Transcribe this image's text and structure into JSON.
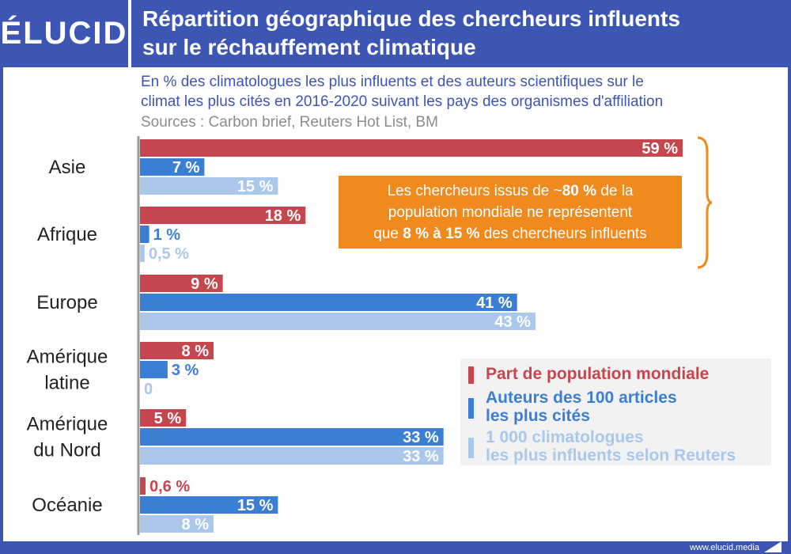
{
  "header": {
    "logo": "ÉLUCID",
    "title_line1": "Répartition géographique des chercheurs influents",
    "title_line2": "sur le réchauffement climatique"
  },
  "subtitle_line1": "En % des climatologues les plus influents et des auteurs scientifiques sur le",
  "subtitle_line2": "climat les plus cités en 2016-2020 suivant les pays des organismes d'affiliation",
  "sources": "Sources : Carbon brief, Reuters Hot List, BM",
  "callout": {
    "line1_a": "Les chercheurs issus de ~",
    "line1_b": "80 %",
    "line1_c": " de la",
    "line2": "population mondiale ne représentent",
    "line3_a": "que ",
    "line3_b": "8 % à 15 %",
    "line3_c": " des chercheurs influents"
  },
  "legend": [
    {
      "line1": "Part de population mondiale",
      "line2": ""
    },
    {
      "line1": "Auteurs des 100 articles",
      "line2": "les plus cités"
    },
    {
      "line1": "1 000 climatologues",
      "line2": "les plus influents selon Reuters"
    }
  ],
  "footer": {
    "url": "www.elucid.media"
  },
  "colors": {
    "header": "#3d55b3",
    "population": "#c4474e",
    "authors": "#3b7fd4",
    "reuters": "#a9c8ec",
    "callout": "#f18a1c"
  },
  "chart_data": {
    "type": "bar",
    "orientation": "horizontal",
    "categories": [
      [
        "Asie"
      ],
      [
        "Afrique"
      ],
      [
        "Europe"
      ],
      [
        "Amérique",
        "latine"
      ],
      [
        "Amérique",
        "du Nord"
      ],
      [
        "Océanie"
      ]
    ],
    "series": [
      {
        "name": "Part de population mondiale",
        "values": [
          59,
          18,
          9,
          8,
          5,
          0.6
        ],
        "labels": [
          "59 %",
          "18 %",
          "9 %",
          "8 %",
          "5 %",
          "0,6 %"
        ]
      },
      {
        "name": "Auteurs des 100 articles les plus cités",
        "values": [
          7,
          1,
          41,
          3,
          33,
          15
        ],
        "labels": [
          "7 %",
          "1 %",
          "41 %",
          "3 %",
          "33 %",
          "15 %"
        ]
      },
      {
        "name": "1 000 climatologues les plus influents selon Reuters",
        "values": [
          15,
          0.5,
          43,
          0,
          33,
          8
        ],
        "labels": [
          "15 %",
          "0,5 %",
          "43 %",
          "0",
          "33 %",
          "8 %"
        ]
      }
    ],
    "xlim": [
      0,
      59
    ],
    "grid": false
  }
}
